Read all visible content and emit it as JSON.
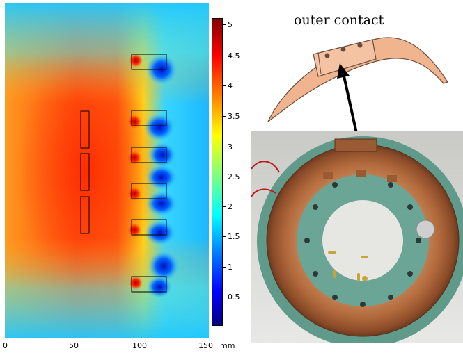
{
  "colorbar": {
    "ticks": [
      "5",
      "4.5",
      "4",
      "3.5",
      "3",
      "2.5",
      "2",
      "1.5",
      "1",
      "0.5"
    ]
  },
  "x_axis": {
    "ticks": [
      "0",
      "50",
      "100",
      "150"
    ],
    "unit": "mm"
  },
  "callout": {
    "label": "outer contact"
  },
  "colors": {
    "copper": "#b26a3c",
    "copper_drawing": "#f0b48e",
    "insulator_green": "#5f9a8a"
  }
}
